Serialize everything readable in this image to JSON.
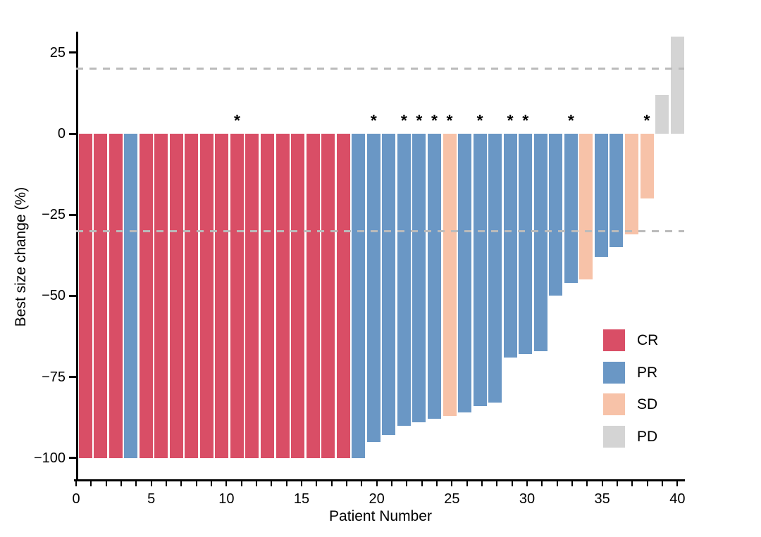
{
  "chart_data": {
    "type": "bar",
    "subtype": "waterfall",
    "title": "",
    "xlabel": "Patient Number",
    "ylabel": "Best size change (%)",
    "xlim": [
      0,
      40.5
    ],
    "ylim": [
      -107,
      31.5
    ],
    "x_ticks": [
      0,
      5,
      10,
      15,
      20,
      25,
      30,
      35,
      40
    ],
    "x_minor_ticks_every": 1,
    "y_ticks": [
      25,
      0,
      -25,
      -50,
      -75,
      -100
    ],
    "y_tick_labels": [
      "25",
      "0",
      "−25",
      "−50",
      "−75",
      "−100"
    ],
    "grid": "off",
    "legend_position": "inside-right",
    "threshold_lines": [
      20,
      -30
    ],
    "threshold_color": "#bbbbbb",
    "annotation_marker": "*",
    "response_colors": {
      "CR": "#D94E66",
      "PR": "#6A97C5",
      "SD": "#F7C2A8",
      "PD": "#D4D4D4"
    },
    "legend": [
      {
        "label": "CR",
        "color": "#D94E66"
      },
      {
        "label": "PR",
        "color": "#6A97C5"
      },
      {
        "label": "SD",
        "color": "#F7C2A8"
      },
      {
        "label": "PD",
        "color": "#D4D4D4"
      }
    ],
    "patients": [
      {
        "n": 1,
        "value": -100,
        "response": "CR",
        "star": false
      },
      {
        "n": 2,
        "value": -100,
        "response": "CR",
        "star": false
      },
      {
        "n": 3,
        "value": -100,
        "response": "CR",
        "star": false
      },
      {
        "n": 4,
        "value": -100,
        "response": "PR",
        "star": false
      },
      {
        "n": 5,
        "value": -100,
        "response": "CR",
        "star": false
      },
      {
        "n": 6,
        "value": -100,
        "response": "CR",
        "star": false
      },
      {
        "n": 7,
        "value": -100,
        "response": "CR",
        "star": false
      },
      {
        "n": 8,
        "value": -100,
        "response": "CR",
        "star": false
      },
      {
        "n": 9,
        "value": -100,
        "response": "CR",
        "star": false
      },
      {
        "n": 10,
        "value": -100,
        "response": "CR",
        "star": false
      },
      {
        "n": 11,
        "value": -100,
        "response": "CR",
        "star": true
      },
      {
        "n": 12,
        "value": -100,
        "response": "CR",
        "star": false
      },
      {
        "n": 13,
        "value": -100,
        "response": "CR",
        "star": false
      },
      {
        "n": 14,
        "value": -100,
        "response": "CR",
        "star": false
      },
      {
        "n": 15,
        "value": -100,
        "response": "CR",
        "star": false
      },
      {
        "n": 16,
        "value": -100,
        "response": "CR",
        "star": false
      },
      {
        "n": 17,
        "value": -100,
        "response": "CR",
        "star": false
      },
      {
        "n": 18,
        "value": -100,
        "response": "CR",
        "star": false
      },
      {
        "n": 19,
        "value": -100,
        "response": "PR",
        "star": false
      },
      {
        "n": 20,
        "value": -95,
        "response": "PR",
        "star": true
      },
      {
        "n": 21,
        "value": -93,
        "response": "PR",
        "star": false
      },
      {
        "n": 22,
        "value": -90,
        "response": "PR",
        "star": true
      },
      {
        "n": 23,
        "value": -89,
        "response": "PR",
        "star": true
      },
      {
        "n": 24,
        "value": -88,
        "response": "PR",
        "star": true
      },
      {
        "n": 25,
        "value": -87,
        "response": "SD",
        "star": true
      },
      {
        "n": 26,
        "value": -86,
        "response": "PR",
        "star": false
      },
      {
        "n": 27,
        "value": -84,
        "response": "PR",
        "star": true
      },
      {
        "n": 28,
        "value": -83,
        "response": "PR",
        "star": false
      },
      {
        "n": 29,
        "value": -69,
        "response": "PR",
        "star": true
      },
      {
        "n": 30,
        "value": -68,
        "response": "PR",
        "star": true
      },
      {
        "n": 31,
        "value": -67,
        "response": "PR",
        "star": false
      },
      {
        "n": 32,
        "value": -50,
        "response": "PR",
        "star": false
      },
      {
        "n": 33,
        "value": -46,
        "response": "PR",
        "star": true
      },
      {
        "n": 34,
        "value": -45,
        "response": "SD",
        "star": false
      },
      {
        "n": 35,
        "value": -38,
        "response": "PR",
        "star": false
      },
      {
        "n": 36,
        "value": -35,
        "response": "PR",
        "star": false
      },
      {
        "n": 37,
        "value": -31,
        "response": "SD",
        "star": false
      },
      {
        "n": 38,
        "value": -20,
        "response": "SD",
        "star": true
      },
      {
        "n": 39,
        "value": 12,
        "response": "PD",
        "star": false
      },
      {
        "n": 40,
        "value": 30,
        "response": "PD",
        "star": false
      }
    ]
  }
}
